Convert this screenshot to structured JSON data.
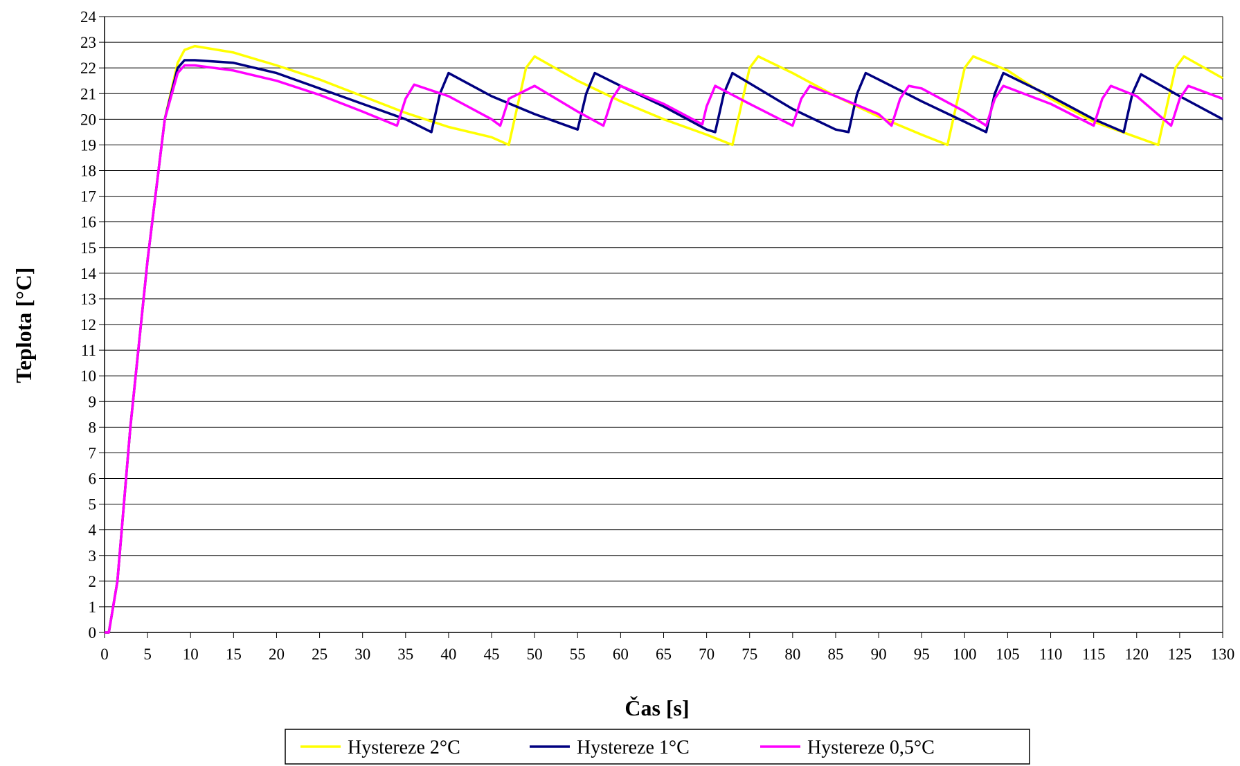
{
  "chart_data": {
    "type": "line",
    "xlabel": "Čas [s]",
    "ylabel": "Teplota [°C]",
    "xlim": [
      0,
      130
    ],
    "ylim": [
      0,
      24
    ],
    "x_ticks": [
      0,
      5,
      10,
      15,
      20,
      25,
      30,
      35,
      40,
      45,
      50,
      55,
      60,
      65,
      70,
      75,
      80,
      85,
      90,
      95,
      100,
      105,
      110,
      115,
      120,
      125,
      130
    ],
    "y_ticks": [
      0,
      1,
      2,
      3,
      4,
      5,
      6,
      7,
      8,
      9,
      10,
      11,
      12,
      13,
      14,
      15,
      16,
      17,
      18,
      19,
      20,
      21,
      22,
      23,
      24
    ],
    "grid": "horizontal",
    "legend_position": "bottom",
    "series": [
      {
        "name": "Hystereze 2°C",
        "color": "#ffff00",
        "x": [
          0,
          0.5,
          1.5,
          3,
          5,
          7,
          8.5,
          9.3,
          10.5,
          15,
          20,
          25,
          30,
          35,
          40,
          45,
          47,
          48,
          49,
          50,
          55,
          60,
          65,
          70,
          73,
          74,
          75,
          76,
          80,
          85,
          90,
          95,
          98,
          99,
          100,
          101,
          105,
          110,
          115,
          120,
          122.5,
          123.5,
          124.5,
          125.5,
          130
        ],
        "values": [
          0,
          0,
          2,
          8,
          14.5,
          20,
          22.2,
          22.7,
          22.85,
          22.6,
          22.1,
          21.55,
          20.9,
          20.25,
          19.7,
          19.3,
          19.0,
          20.5,
          22.0,
          22.45,
          21.5,
          20.7,
          20.0,
          19.4,
          19.0,
          20.5,
          22.0,
          22.45,
          21.8,
          20.9,
          20.1,
          19.4,
          19.0,
          20.5,
          22.0,
          22.45,
          21.9,
          20.8,
          19.9,
          19.3,
          19.0,
          20.5,
          22.0,
          22.45,
          21.6
        ]
      },
      {
        "name": "Hystereze 1°C",
        "color": "#000080",
        "x": [
          0,
          0.5,
          1.5,
          3,
          5,
          7,
          8.5,
          9.3,
          10.5,
          15,
          20,
          25,
          30,
          35,
          38,
          39,
          40,
          45,
          50,
          55,
          56,
          57,
          60,
          65,
          70,
          71,
          72,
          73,
          75,
          80,
          85,
          86.5,
          87.5,
          88.5,
          90,
          95,
          100,
          102.5,
          103.5,
          104.5,
          110,
          115,
          118.5,
          119.5,
          120.5,
          125,
          130
        ],
        "values": [
          0,
          0,
          2,
          8,
          14.5,
          20,
          22.0,
          22.3,
          22.3,
          22.2,
          21.8,
          21.2,
          20.6,
          20.0,
          19.5,
          21.0,
          21.8,
          20.9,
          20.2,
          19.6,
          21.0,
          21.8,
          21.3,
          20.5,
          19.6,
          19.5,
          21.0,
          21.8,
          21.4,
          20.4,
          19.6,
          19.5,
          21.0,
          21.8,
          21.55,
          20.7,
          19.9,
          19.5,
          21.0,
          21.8,
          20.9,
          20.0,
          19.5,
          21.0,
          21.75,
          20.9,
          20.0
        ]
      },
      {
        "name": "Hystereze 0,5°C",
        "color": "#ff00ff",
        "x": [
          0,
          0.5,
          1.5,
          3,
          5,
          7,
          8.5,
          9.3,
          10.5,
          15,
          20,
          25,
          30,
          34,
          35,
          36,
          40,
          45,
          46,
          47,
          50,
          55,
          58,
          59,
          60,
          65,
          69.5,
          70,
          71,
          75,
          80,
          81,
          82,
          85,
          90,
          91.5,
          92.5,
          93.5,
          95,
          100,
          102.5,
          103.5,
          104.5,
          110,
          115,
          116,
          117,
          120,
          124,
          125,
          126,
          130
        ],
        "values": [
          0,
          0,
          2,
          8,
          14.5,
          20,
          21.8,
          22.1,
          22.1,
          21.9,
          21.5,
          20.95,
          20.3,
          19.75,
          20.8,
          21.35,
          20.9,
          20.0,
          19.75,
          20.8,
          21.3,
          20.3,
          19.75,
          20.8,
          21.3,
          20.6,
          19.8,
          20.5,
          21.3,
          20.6,
          19.75,
          20.8,
          21.3,
          20.9,
          20.2,
          19.75,
          20.8,
          21.3,
          21.2,
          20.3,
          19.75,
          20.8,
          21.3,
          20.6,
          19.75,
          20.8,
          21.3,
          20.9,
          19.75,
          20.8,
          21.3,
          20.8
        ]
      }
    ]
  }
}
